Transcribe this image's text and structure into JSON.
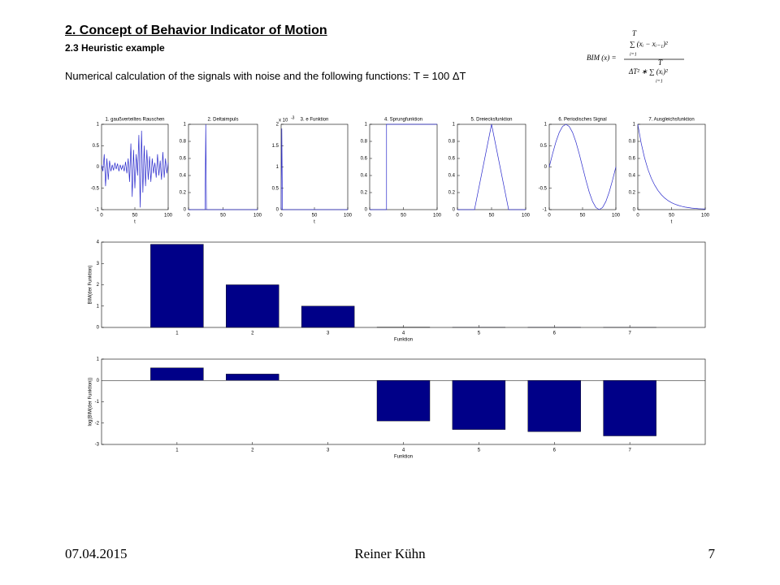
{
  "header": {
    "title": "2.   Concept of Behavior Indicator of Motion",
    "subtitle": "2.3 Heuristic example",
    "text": "Numerical calculation of the signals with noise and the following functions:  T = 100 ΔT"
  },
  "formula": {
    "lhs": "BIM (x) =",
    "numerator": "∑ (xᵢ − xᵢ₋₁)²",
    "denominator": "ΔT² ∗ ∑ (xᵢ)²",
    "upper_limit": "T",
    "lower_limit": "i=1"
  },
  "footer": {
    "date": "07.04.2015",
    "author": "Reiner Kühn",
    "page": "7"
  },
  "chart_data": [
    {
      "type": "line",
      "title": "1. gaußverteiltes Rauschen",
      "xlabel": "t",
      "color": "#2a2acc",
      "x": [
        0,
        2,
        4,
        6,
        8,
        10,
        12,
        14,
        16,
        18,
        20,
        22,
        24,
        26,
        28,
        30,
        32,
        34,
        36,
        38,
        40,
        42,
        44,
        46,
        48,
        50,
        52,
        54,
        56,
        58,
        60,
        62,
        64,
        66,
        68,
        70,
        72,
        74,
        76,
        78,
        80,
        82,
        84,
        86,
        88,
        90,
        92,
        94,
        96,
        98,
        100
      ],
      "values": [
        0.05,
        -0.1,
        0.3,
        -0.45,
        0.2,
        -0.3,
        0.15,
        -0.1,
        0.05,
        -0.08,
        0.1,
        -0.05,
        0.08,
        -0.1,
        0.05,
        -0.06,
        0.04,
        -0.1,
        0.12,
        -0.15,
        0.2,
        -0.35,
        0.55,
        -0.7,
        0.4,
        -0.5,
        0.3,
        -0.2,
        0.75,
        -0.95,
        0.85,
        -0.6,
        0.5,
        -0.45,
        0.4,
        -0.3,
        0.25,
        -0.35,
        0.2,
        -0.15,
        0.1,
        -0.25,
        0.3,
        -0.2,
        0.15,
        -0.3,
        0.35,
        -0.25,
        0.2,
        -0.15,
        0.1
      ],
      "xlim": [
        0,
        100
      ],
      "xticks": [
        0,
        50,
        100
      ],
      "ylim": [
        -1,
        1
      ],
      "yticks": [
        -1,
        -0.5,
        0,
        0.5,
        1
      ]
    },
    {
      "type": "line",
      "title": "2. Deltaimpuls",
      "color": "#2a2acc",
      "x": [
        0,
        24,
        25,
        26,
        100
      ],
      "values": [
        0,
        0,
        1,
        0,
        0
      ],
      "xlim": [
        0,
        100
      ],
      "xticks": [
        0,
        50,
        100
      ],
      "ylim": [
        0,
        1
      ],
      "yticks": [
        0,
        0.2,
        0.4,
        0.6,
        0.8,
        1
      ]
    },
    {
      "type": "line",
      "title": "3. e Funktion",
      "xlabel": "t",
      "y_multiplier": "x 10",
      "y_exponent": "-3",
      "color": "#2a2acc",
      "x": [
        0,
        1,
        2,
        100
      ],
      "values": [
        0,
        1.9,
        0,
        0
      ],
      "xlim": [
        0,
        100
      ],
      "xticks": [
        0,
        50,
        100
      ],
      "ylim": [
        0,
        2
      ],
      "yticks": [
        0,
        0.5,
        1,
        1.5,
        2
      ]
    },
    {
      "type": "line",
      "title": "4. Sprungfunktion",
      "color": "#2a2acc",
      "x": [
        0,
        25,
        25,
        100
      ],
      "values": [
        0,
        0,
        1,
        1
      ],
      "xlim": [
        0,
        100
      ],
      "xticks": [
        0,
        50,
        100
      ],
      "ylim": [
        0,
        1
      ],
      "yticks": [
        0,
        0.2,
        0.4,
        0.6,
        0.8,
        1
      ]
    },
    {
      "type": "line",
      "title": "5. Dreiecksfunktion",
      "color": "#2a2acc",
      "x": [
        0,
        25,
        50,
        75,
        100
      ],
      "values": [
        0,
        0,
        1,
        0,
        0
      ],
      "xlim": [
        0,
        100
      ],
      "xticks": [
        0,
        50,
        100
      ],
      "ylim": [
        0,
        1
      ],
      "yticks": [
        0,
        0.2,
        0.4,
        0.6,
        0.8,
        1
      ]
    },
    {
      "type": "line",
      "title": "6. Periodisches Signal",
      "color": "#2a2acc",
      "x": [
        0,
        5,
        10,
        15,
        20,
        25,
        30,
        35,
        40,
        45,
        50,
        55,
        60,
        65,
        70,
        75,
        80,
        85,
        90,
        95,
        100
      ],
      "values": [
        0,
        0.309,
        0.588,
        0.809,
        0.951,
        1,
        0.951,
        0.809,
        0.588,
        0.309,
        0,
        -0.309,
        -0.588,
        -0.809,
        -0.951,
        -1,
        -0.951,
        -0.809,
        -0.588,
        -0.309,
        0
      ],
      "xlim": [
        0,
        100
      ],
      "xticks": [
        0,
        50,
        100
      ],
      "ylim": [
        -1,
        1
      ],
      "yticks": [
        -1,
        -0.5,
        0,
        0.5,
        1
      ]
    },
    {
      "type": "line",
      "title": "7. Ausgleichsfunktion",
      "xlabel": "t",
      "color": "#2a2acc",
      "x": [
        0,
        5,
        10,
        15,
        20,
        25,
        30,
        35,
        40,
        45,
        50,
        55,
        60,
        65,
        70,
        75,
        80,
        85,
        90,
        95,
        100
      ],
      "values": [
        1,
        0.779,
        0.607,
        0.472,
        0.368,
        0.287,
        0.223,
        0.174,
        0.135,
        0.105,
        0.082,
        0.064,
        0.05,
        0.039,
        0.03,
        0.024,
        0.018,
        0.014,
        0.011,
        0.009,
        0.007
      ],
      "xlim": [
        0,
        100
      ],
      "xticks": [
        0,
        50,
        100
      ],
      "ylim": [
        0,
        1
      ],
      "yticks": [
        0,
        0.2,
        0.4,
        0.6,
        0.8,
        1
      ]
    },
    {
      "type": "bar",
      "xlabel": "Funktion",
      "ylabel": "BIM(der Funktion)",
      "color": "#000088",
      "categories": [
        "1",
        "2",
        "3",
        "4",
        "5",
        "6",
        "7"
      ],
      "values": [
        3.9,
        2.0,
        1.0,
        0.0126,
        0.005,
        0.004,
        0.0025
      ],
      "ylim": [
        0,
        4
      ],
      "yticks": [
        0,
        1,
        2,
        3,
        4
      ]
    },
    {
      "type": "bar",
      "xlabel": "Funktion",
      "ylabel": "log(BIM(der Funktion))",
      "color": "#000088",
      "categories": [
        "1",
        "2",
        "3",
        "4",
        "5",
        "6",
        "7"
      ],
      "values": [
        0.59,
        0.3,
        0,
        -1.9,
        -2.3,
        -2.4,
        -2.6
      ],
      "ylim": [
        -3,
        1
      ],
      "yticks": [
        -3,
        -2,
        -1,
        0,
        1
      ]
    }
  ]
}
